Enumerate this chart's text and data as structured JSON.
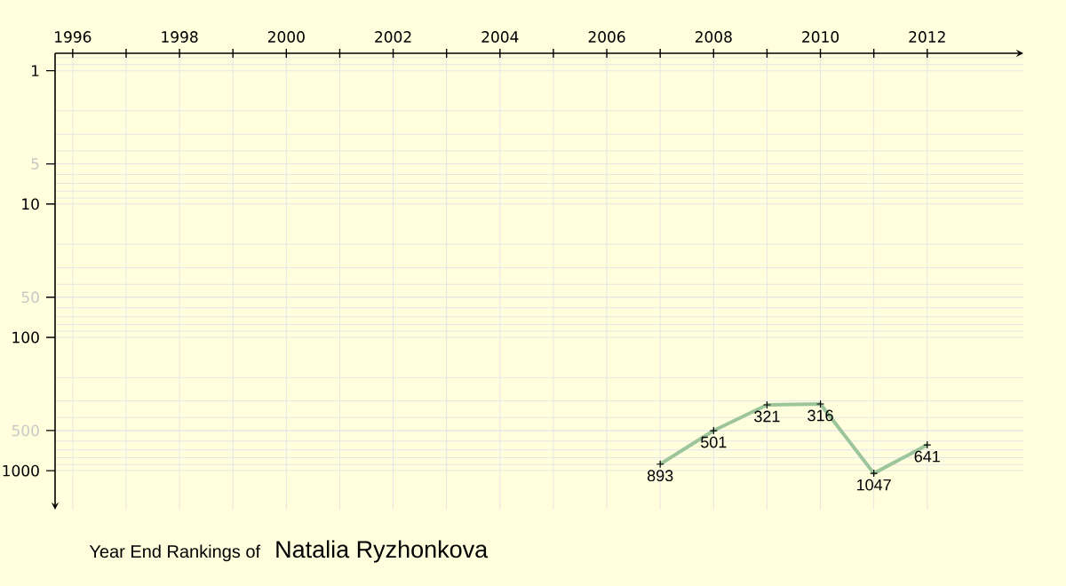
{
  "chart_data": {
    "type": "line",
    "title": "Year End Rankings of",
    "subtitle": "Natalia Ryzhonkova",
    "x": [
      2007,
      2008,
      2009,
      2010,
      2011,
      2012
    ],
    "values": [
      893,
      501,
      321,
      316,
      1047,
      641
    ],
    "color": "#9cc59c",
    "marker": "cross",
    "data_labels": true,
    "log": "y",
    "grid": true,
    "xlim": [
      1995.67,
      2013.8
    ],
    "ylim": [
      1960,
      0.74
    ],
    "xticks": [
      1996,
      {
        "value": 1997,
        "label": null
      },
      1998,
      {
        "value": 1999,
        "label": null
      },
      2000,
      {
        "value": 2001,
        "label": null
      },
      2002,
      {
        "value": 2003,
        "label": null
      },
      2004,
      {
        "value": 2005,
        "label": null
      },
      2006,
      {
        "value": 2007,
        "label": null
      },
      2008,
      {
        "value": 2009,
        "label": null
      },
      2010,
      {
        "value": 2011,
        "label": null
      },
      2012
    ],
    "yticks": [
      1,
      5,
      10,
      50,
      100,
      500,
      1000
    ]
  }
}
